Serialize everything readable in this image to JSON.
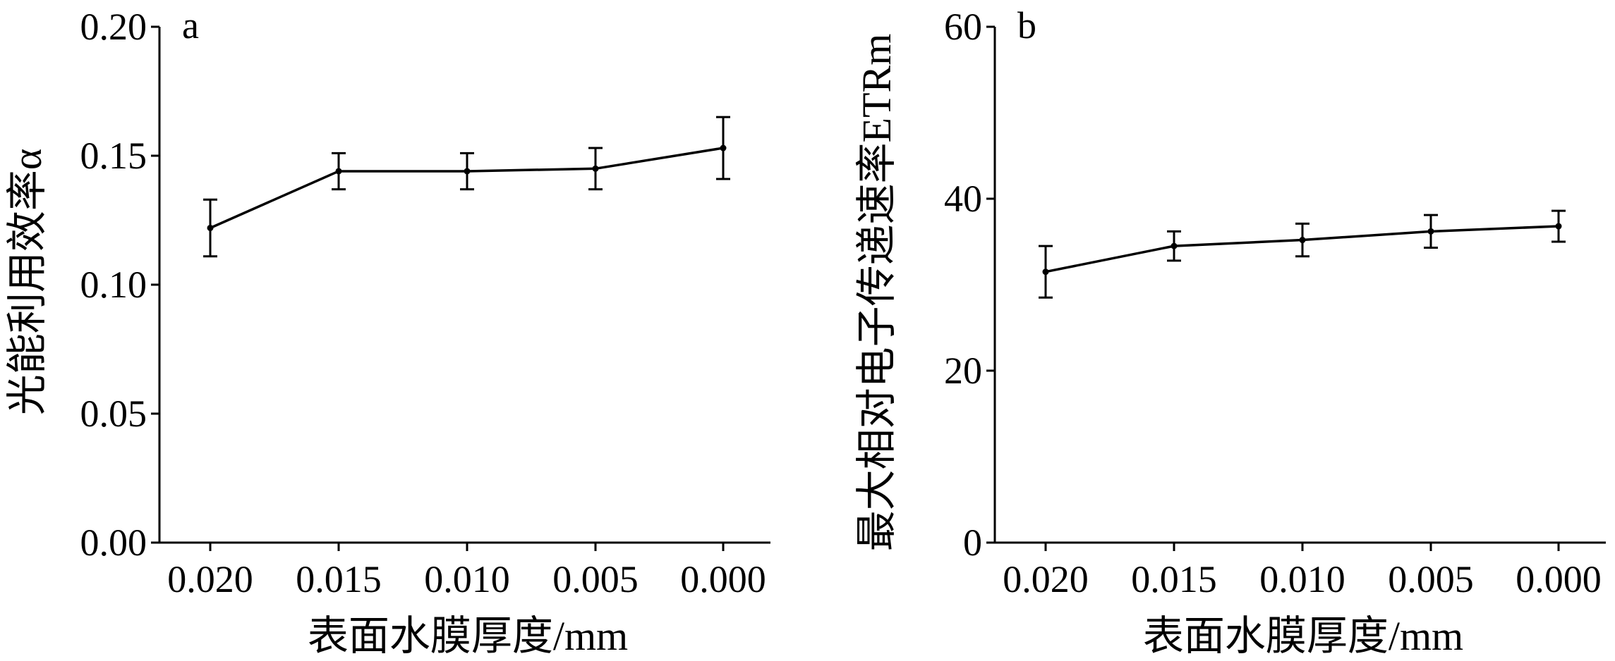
{
  "chart_data": [
    {
      "type": "line",
      "panel": "a",
      "categories": [
        "0.020",
        "0.015",
        "0.010",
        "0.005",
        "0.000"
      ],
      "values": [
        0.122,
        0.144,
        0.144,
        0.145,
        0.153
      ],
      "errors": [
        0.011,
        0.007,
        0.007,
        0.008,
        0.012
      ],
      "xlabel": "表面水膜厚度/mm",
      "ylabel": "光能利用效率α",
      "ylim": [
        0,
        0.2
      ],
      "yticks": [
        "0.00",
        "0.05",
        "0.10",
        "0.15",
        "0.20"
      ],
      "grid": false
    },
    {
      "type": "line",
      "panel": "b",
      "categories": [
        "0.020",
        "0.015",
        "0.010",
        "0.005",
        "0.000"
      ],
      "values": [
        31.5,
        34.5,
        35.2,
        36.2,
        36.8
      ],
      "errors": [
        3.0,
        1.7,
        1.9,
        1.9,
        1.8
      ],
      "xlabel": "表面水膜厚度/mm",
      "ylabel": "最大相对电子传递速率ETRm",
      "ylim": [
        0,
        60
      ],
      "yticks": [
        "0",
        "20",
        "40",
        "60"
      ],
      "grid": false
    }
  ]
}
